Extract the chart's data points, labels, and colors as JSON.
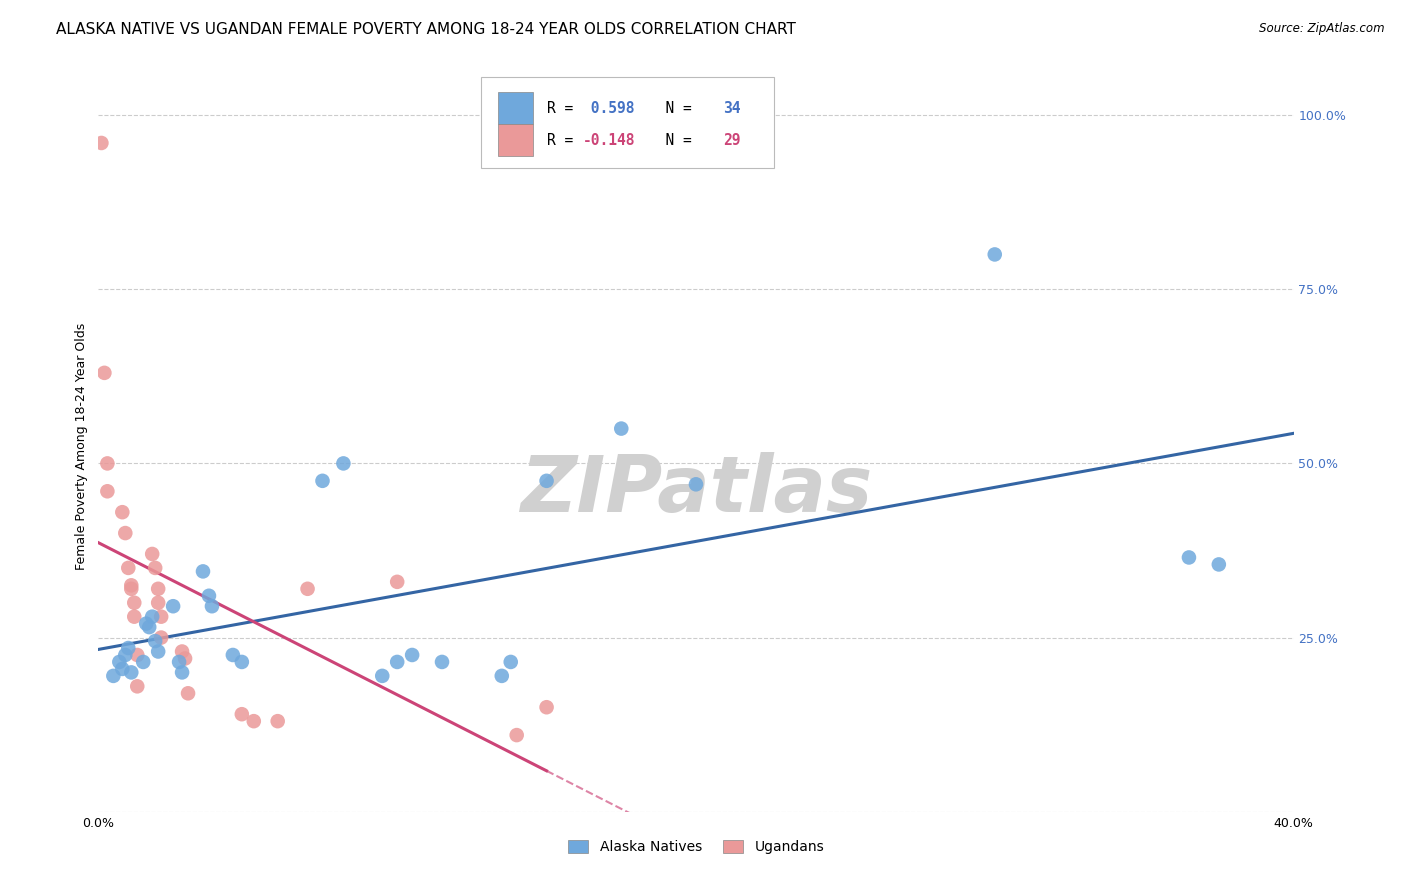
{
  "title": "ALASKA NATIVE VS UGANDAN FEMALE POVERTY AMONG 18-24 YEAR OLDS CORRELATION CHART",
  "source": "Source: ZipAtlas.com",
  "ylabel": "Female Poverty Among 18-24 Year Olds",
  "xlim": [
    0.0,
    0.4
  ],
  "ylim": [
    0.0,
    1.05
  ],
  "xticks": [
    0.0,
    0.08,
    0.16,
    0.24,
    0.32,
    0.4
  ],
  "xticklabels": [
    "0.0%",
    "",
    "",
    "",
    "",
    "40.0%"
  ],
  "ytick_positions": [
    0.0,
    0.25,
    0.5,
    0.75,
    1.0
  ],
  "ytick_labels_right": [
    "",
    "25.0%",
    "50.0%",
    "75.0%",
    "100.0%"
  ],
  "alaska_R": 0.598,
  "alaska_N": 34,
  "ugandan_R": -0.148,
  "ugandan_N": 29,
  "alaska_color": "#6fa8dc",
  "ugandan_color": "#ea9999",
  "line_blue": "#3465a4",
  "line_pink": "#cc4477",
  "background_color": "#ffffff",
  "grid_color": "#cccccc",
  "alaska_x": [
    0.005,
    0.007,
    0.008,
    0.009,
    0.01,
    0.011,
    0.015,
    0.016,
    0.017,
    0.018,
    0.019,
    0.02,
    0.025,
    0.027,
    0.028,
    0.035,
    0.037,
    0.038,
    0.045,
    0.048,
    0.075,
    0.082,
    0.095,
    0.1,
    0.105,
    0.115,
    0.135,
    0.138,
    0.15,
    0.175,
    0.2,
    0.3,
    0.365,
    0.375
  ],
  "alaska_y": [
    0.195,
    0.215,
    0.205,
    0.225,
    0.235,
    0.2,
    0.215,
    0.27,
    0.265,
    0.28,
    0.245,
    0.23,
    0.295,
    0.215,
    0.2,
    0.345,
    0.31,
    0.295,
    0.225,
    0.215,
    0.475,
    0.5,
    0.195,
    0.215,
    0.225,
    0.215,
    0.195,
    0.215,
    0.475,
    0.55,
    0.47,
    0.8,
    0.365,
    0.355
  ],
  "ugandan_x": [
    0.001,
    0.002,
    0.003,
    0.003,
    0.008,
    0.009,
    0.01,
    0.011,
    0.011,
    0.012,
    0.012,
    0.013,
    0.013,
    0.018,
    0.019,
    0.02,
    0.02,
    0.021,
    0.021,
    0.028,
    0.029,
    0.03,
    0.048,
    0.052,
    0.06,
    0.07,
    0.1,
    0.14,
    0.15
  ],
  "ugandan_y": [
    0.96,
    0.63,
    0.5,
    0.46,
    0.43,
    0.4,
    0.35,
    0.325,
    0.32,
    0.3,
    0.28,
    0.225,
    0.18,
    0.37,
    0.35,
    0.32,
    0.3,
    0.28,
    0.25,
    0.23,
    0.22,
    0.17,
    0.14,
    0.13,
    0.13,
    0.32,
    0.33,
    0.11,
    0.15
  ],
  "watermark_text": "ZIPatlas",
  "watermark_color": "#d0d0d0",
  "title_fontsize": 11,
  "axis_label_fontsize": 9,
  "tick_fontsize": 9,
  "right_tick_color": "#4472c4"
}
